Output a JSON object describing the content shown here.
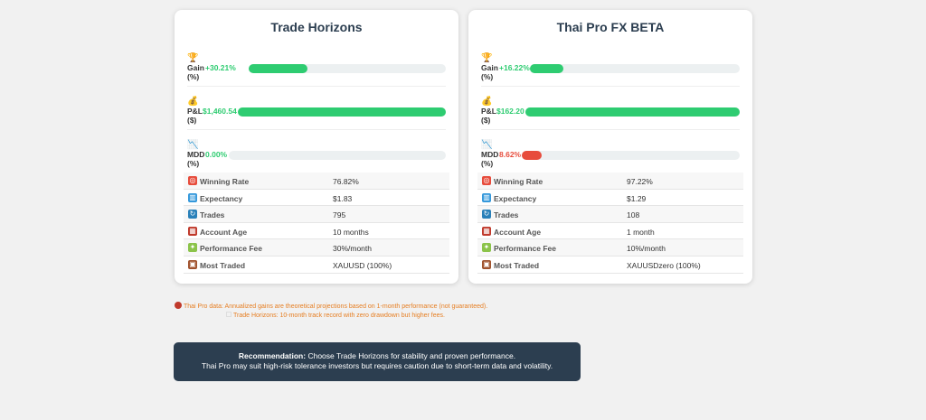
{
  "cards": [
    {
      "title": "Trade Horizons",
      "metrics": [
        {
          "emoji": "🏆",
          "name": "Gain",
          "unit": "(%)",
          "value": "+30.21%",
          "fill": 0.3,
          "color": "green"
        },
        {
          "emoji": "💰",
          "name": "P&L",
          "unit": "($)",
          "value": "$1,460.54",
          "fill": 1.0,
          "color": "green"
        },
        {
          "emoji": "📉",
          "name": "MDD",
          "unit": "(%)",
          "value": "0.00%",
          "fill": 0.0,
          "color": "green"
        }
      ],
      "stats": [
        {
          "icon": "target-icon",
          "glyph": "◎",
          "label": "Winning Rate",
          "value": "76.82%"
        },
        {
          "icon": "chart-icon",
          "glyph": "▥",
          "label": "Expectancy",
          "value": "$1.83"
        },
        {
          "icon": "refresh-icon",
          "glyph": "↻",
          "label": "Trades",
          "value": "795"
        },
        {
          "icon": "calendar-icon",
          "glyph": "▦",
          "label": "Account Age",
          "value": "10 months"
        },
        {
          "icon": "money-icon",
          "glyph": "✦",
          "label": "Performance Fee",
          "value": "30%/month"
        },
        {
          "icon": "package-icon",
          "glyph": "▣",
          "label": "Most Traded",
          "value": "XAUUSD (100%)"
        }
      ]
    },
    {
      "title": "Thai Pro FX BETA",
      "metrics": [
        {
          "emoji": "🏆",
          "name": "Gain",
          "unit": "(%)",
          "value": "+16.22%",
          "fill": 0.16,
          "color": "green"
        },
        {
          "emoji": "💰",
          "name": "P&L",
          "unit": "($)",
          "value": "$162.20",
          "fill": 1.0,
          "color": "green"
        },
        {
          "emoji": "📉",
          "name": "MDD",
          "unit": "(%)",
          "value": "8.62%",
          "fill": 0.09,
          "color": "red"
        }
      ],
      "stats": [
        {
          "icon": "target-icon",
          "glyph": "◎",
          "label": "Winning Rate",
          "value": "97.22%"
        },
        {
          "icon": "chart-icon",
          "glyph": "▥",
          "label": "Expectancy",
          "value": "$1.29"
        },
        {
          "icon": "refresh-icon",
          "glyph": "↻",
          "label": "Trades",
          "value": "108"
        },
        {
          "icon": "calendar-icon",
          "glyph": "▦",
          "label": "Account Age",
          "value": "1 month"
        },
        {
          "icon": "money-icon",
          "glyph": "✦",
          "label": "Performance Fee",
          "value": "10%/month"
        },
        {
          "icon": "package-icon",
          "glyph": "▣",
          "label": "Most Traded",
          "value": "XAUUSDzero (100%)"
        }
      ]
    }
  ],
  "notes": {
    "line1": "Thai Pro data: Annualized gains are theoretical projections based on 1-month performance (not guaranteed).",
    "line2": "Trade Horizons: 10-month track record with zero drawdown but higher fees."
  },
  "recommendation": {
    "label": "Recommendation:",
    "line1": "Choose Trade Horizons for stability and proven performance.",
    "line2": "Thai Pro may suit high-risk tolerance investors but requires caution due to short-term data and volatility."
  },
  "colors": {
    "green": "#2ecc71",
    "red": "#e74c3c",
    "navy": "#2c3e50",
    "note": "#e67e22"
  }
}
